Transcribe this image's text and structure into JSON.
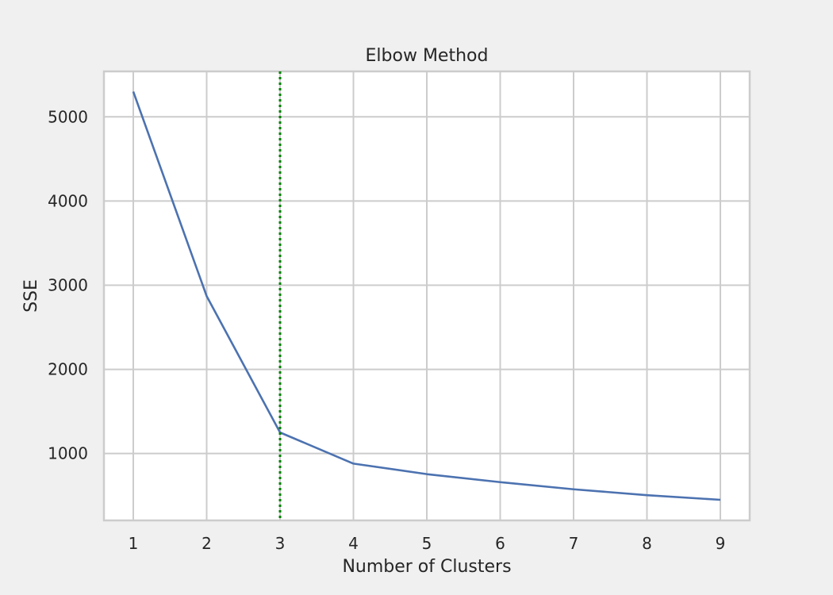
{
  "chart_data": {
    "type": "line",
    "title": "Elbow Method",
    "xlabel": "Number of Clusters",
    "ylabel": "SSE",
    "x": [
      1,
      2,
      3,
      4,
      5,
      6,
      7,
      8,
      9
    ],
    "xticks": [
      "1",
      "2",
      "3",
      "4",
      "5",
      "6",
      "7",
      "8",
      "9"
    ],
    "yticks": [
      1000,
      2000,
      3000,
      4000,
      5000
    ],
    "ytick_labels": [
      "1000",
      "2000",
      "3000",
      "4000",
      "5000"
    ],
    "xlim": [
      0.6,
      9.4
    ],
    "ylim": [
      205,
      5540
    ],
    "grid": true,
    "series": [
      {
        "values": [
          5300,
          2870,
          1250,
          880,
          755,
          660,
          575,
          505,
          450
        ],
        "color": "#4c72b0"
      }
    ],
    "vertical_line": {
      "x": 3,
      "color": "#008000",
      "style": "dotted"
    }
  }
}
